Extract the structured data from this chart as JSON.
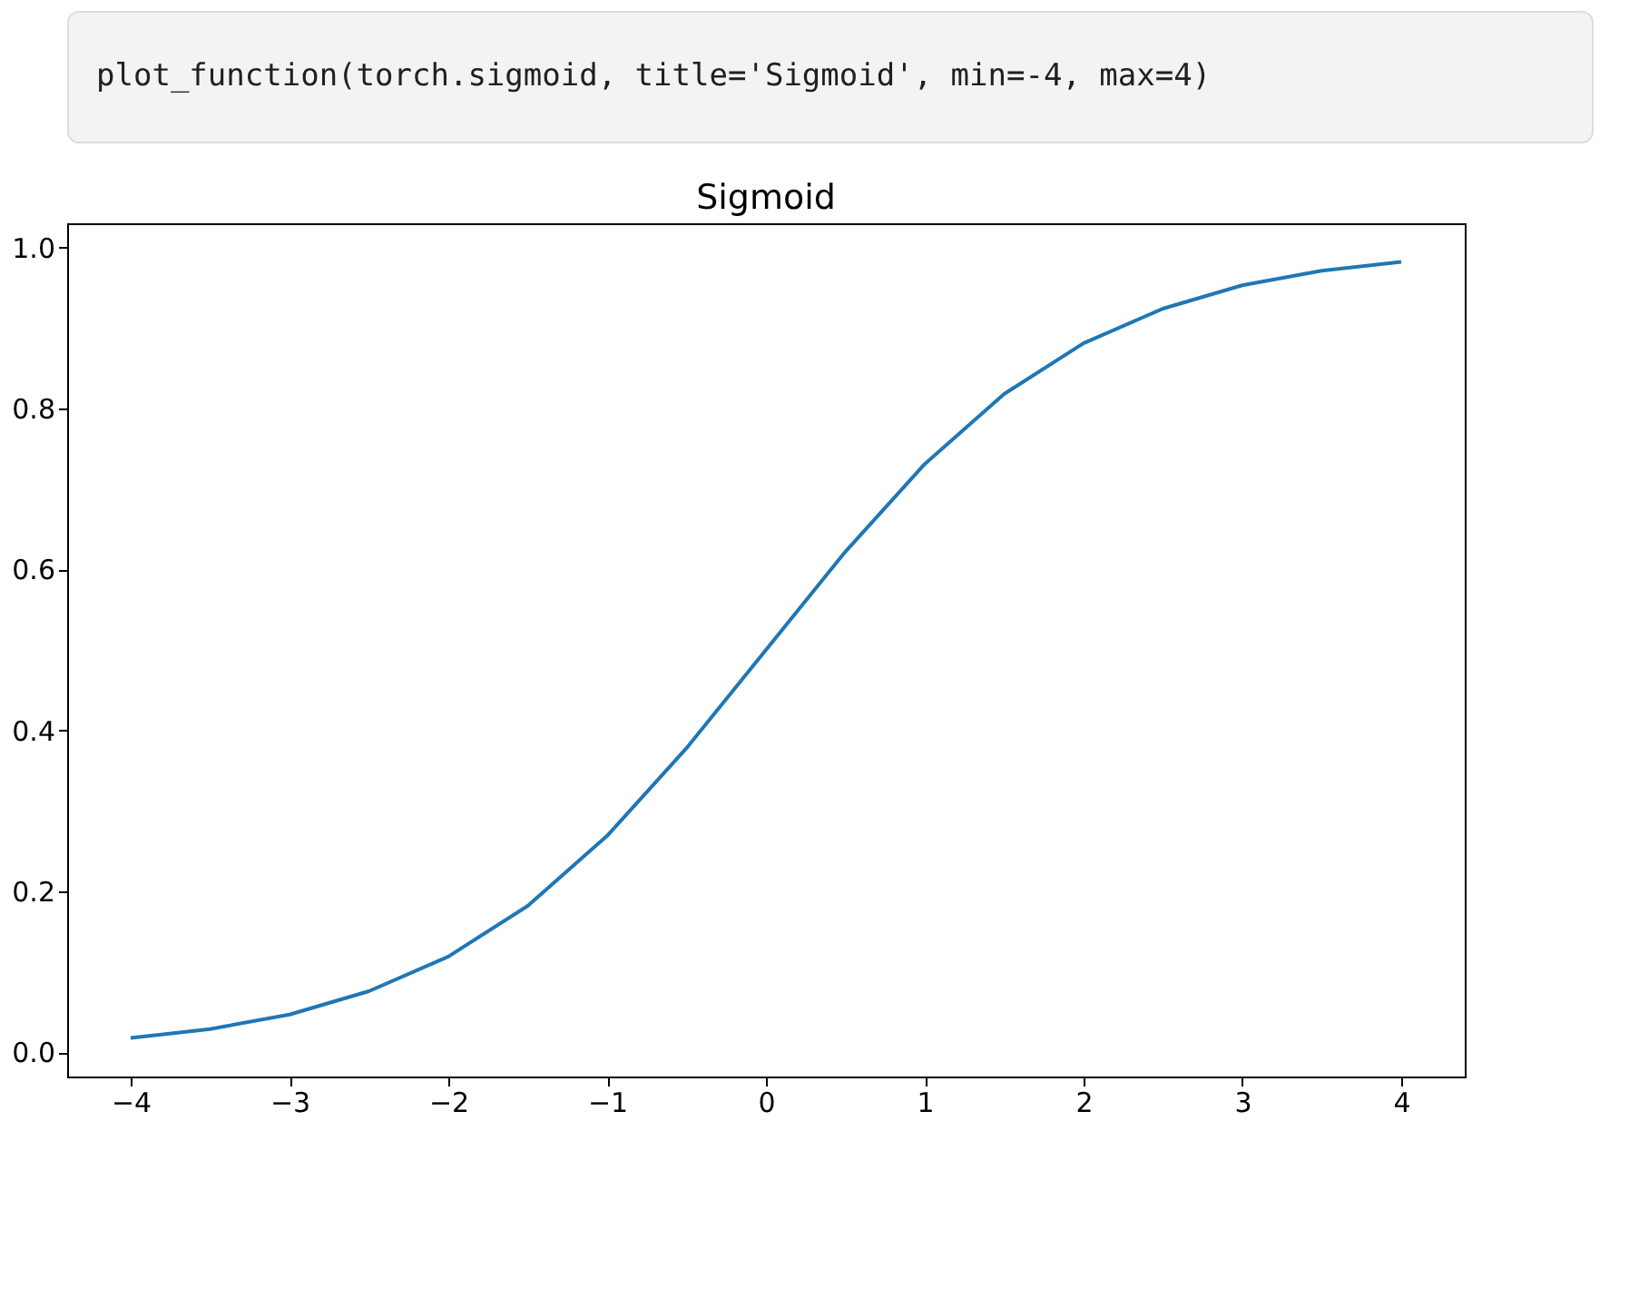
{
  "chart_data": {
    "type": "line",
    "title": "Sigmoid",
    "annotations": [
      "plot_function(torch.sigmoid, title='Sigmoid', min=-4, max=4)"
    ],
    "x": [
      -4,
      -3.5,
      -3,
      -2.5,
      -2,
      -1.5,
      -1,
      -0.5,
      0,
      0.5,
      1,
      1.5,
      2,
      2.5,
      3,
      3.5,
      4
    ],
    "series": [
      {
        "color": "#1f77b4",
        "values": [
          0.018,
          0.029,
          0.047,
          0.076,
          0.119,
          0.182,
          0.269,
          0.378,
          0.5,
          0.622,
          0.731,
          0.818,
          0.881,
          0.924,
          0.953,
          0.971,
          0.982
        ]
      }
    ],
    "xlim": [
      -4.4,
      4.4
    ],
    "xticks": [
      -4,
      -3,
      -2,
      -1,
      0,
      1,
      2,
      3,
      4
    ],
    "ylim": [
      -0.03,
      1.03
    ],
    "yticks": [
      {
        "value": 0,
        "label": "0.0"
      },
      0.2,
      0.4,
      0.6,
      0.8,
      {
        "value": 1,
        "label": "1.0"
      }
    ],
    "grid": false,
    "marker": "none",
    "line_style": "solid"
  }
}
